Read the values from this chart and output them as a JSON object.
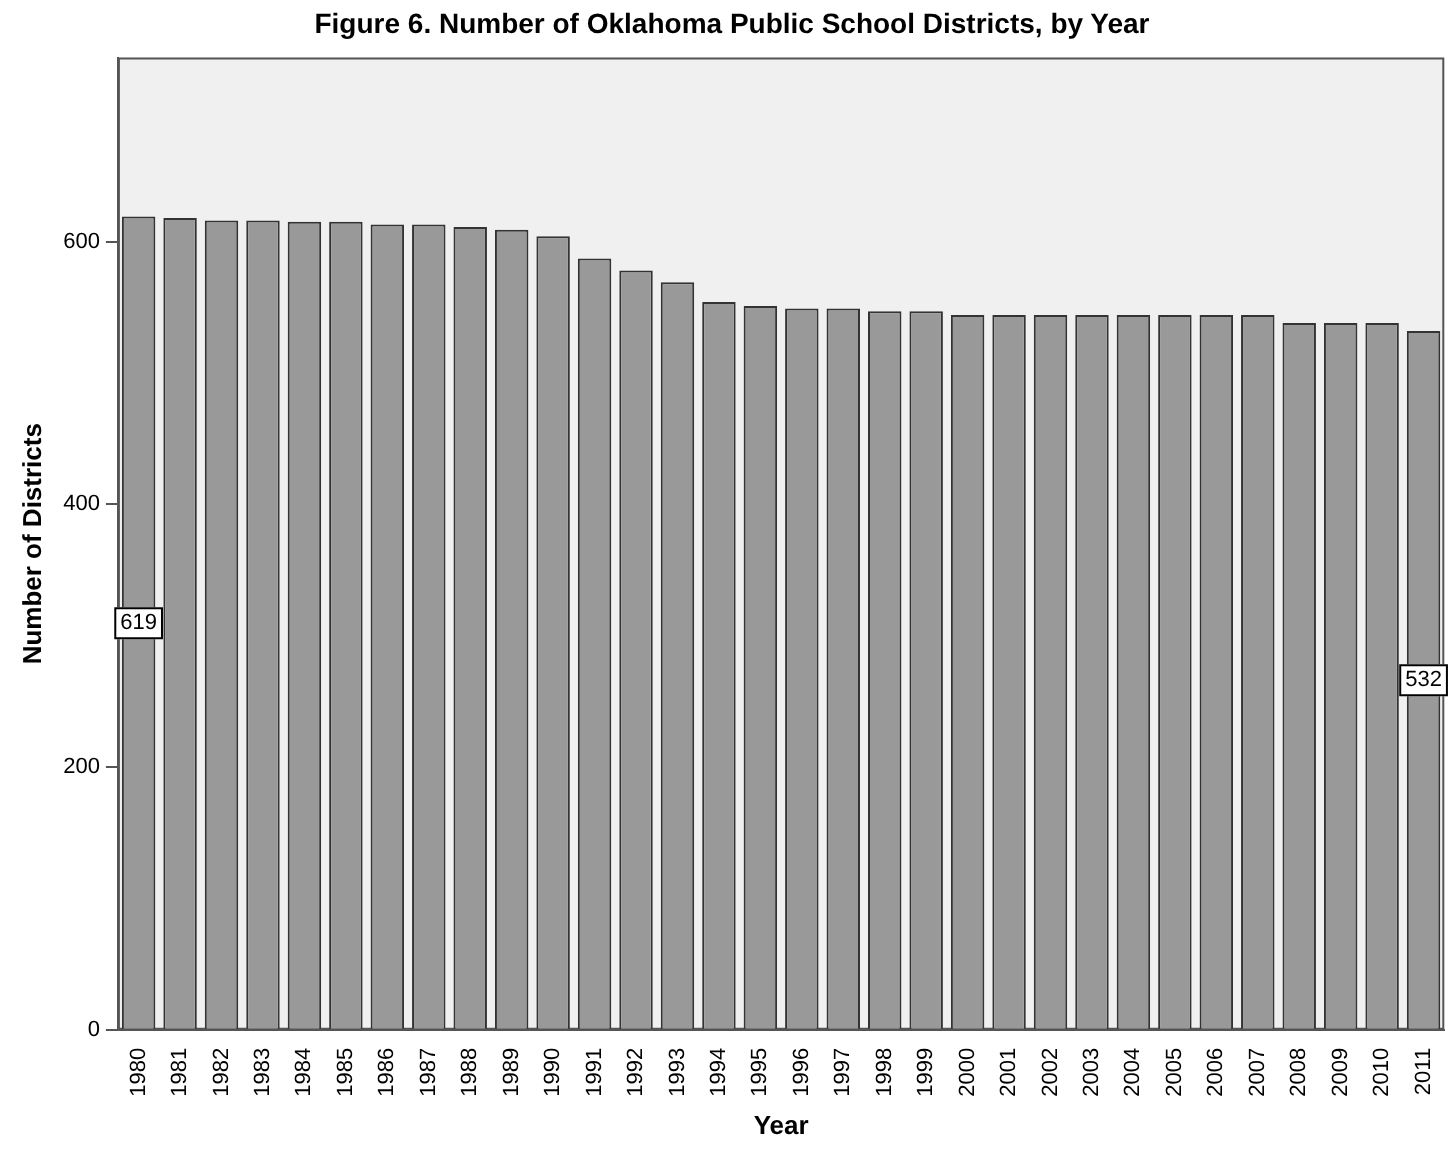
{
  "chart_data": {
    "type": "bar",
    "title": "Figure 6. Number of Oklahoma Public School Districts, by Year",
    "xlabel": "Year",
    "ylabel": "Number of Districts",
    "categories": [
      "1980",
      "1981",
      "1982",
      "1983",
      "1984",
      "1985",
      "1986",
      "1987",
      "1988",
      "1989",
      "1990",
      "1991",
      "1992",
      "1993",
      "1994",
      "1995",
      "1996",
      "1997",
      "1998",
      "1999",
      "2000",
      "2001",
      "2002",
      "2003",
      "2004",
      "2005",
      "2006",
      "2007",
      "2008",
      "2009",
      "2010",
      "2011"
    ],
    "values": [
      619,
      618,
      616,
      616,
      615,
      615,
      613,
      613,
      611,
      609,
      604,
      587,
      578,
      569,
      554,
      551,
      549,
      549,
      547,
      547,
      544,
      544,
      544,
      544,
      544,
      544,
      544,
      544,
      538,
      538,
      538,
      532
    ],
    "value_labels": [
      "619",
      null,
      null,
      null,
      null,
      null,
      null,
      null,
      null,
      null,
      null,
      null,
      null,
      null,
      null,
      null,
      null,
      null,
      null,
      null,
      null,
      null,
      null,
      null,
      null,
      null,
      null,
      null,
      null,
      null,
      null,
      "532"
    ],
    "color": "#999999",
    "ylim": [
      0,
      740
    ],
    "yticks": [
      0,
      200,
      400,
      600
    ],
    "grid": false,
    "legend": false
  }
}
